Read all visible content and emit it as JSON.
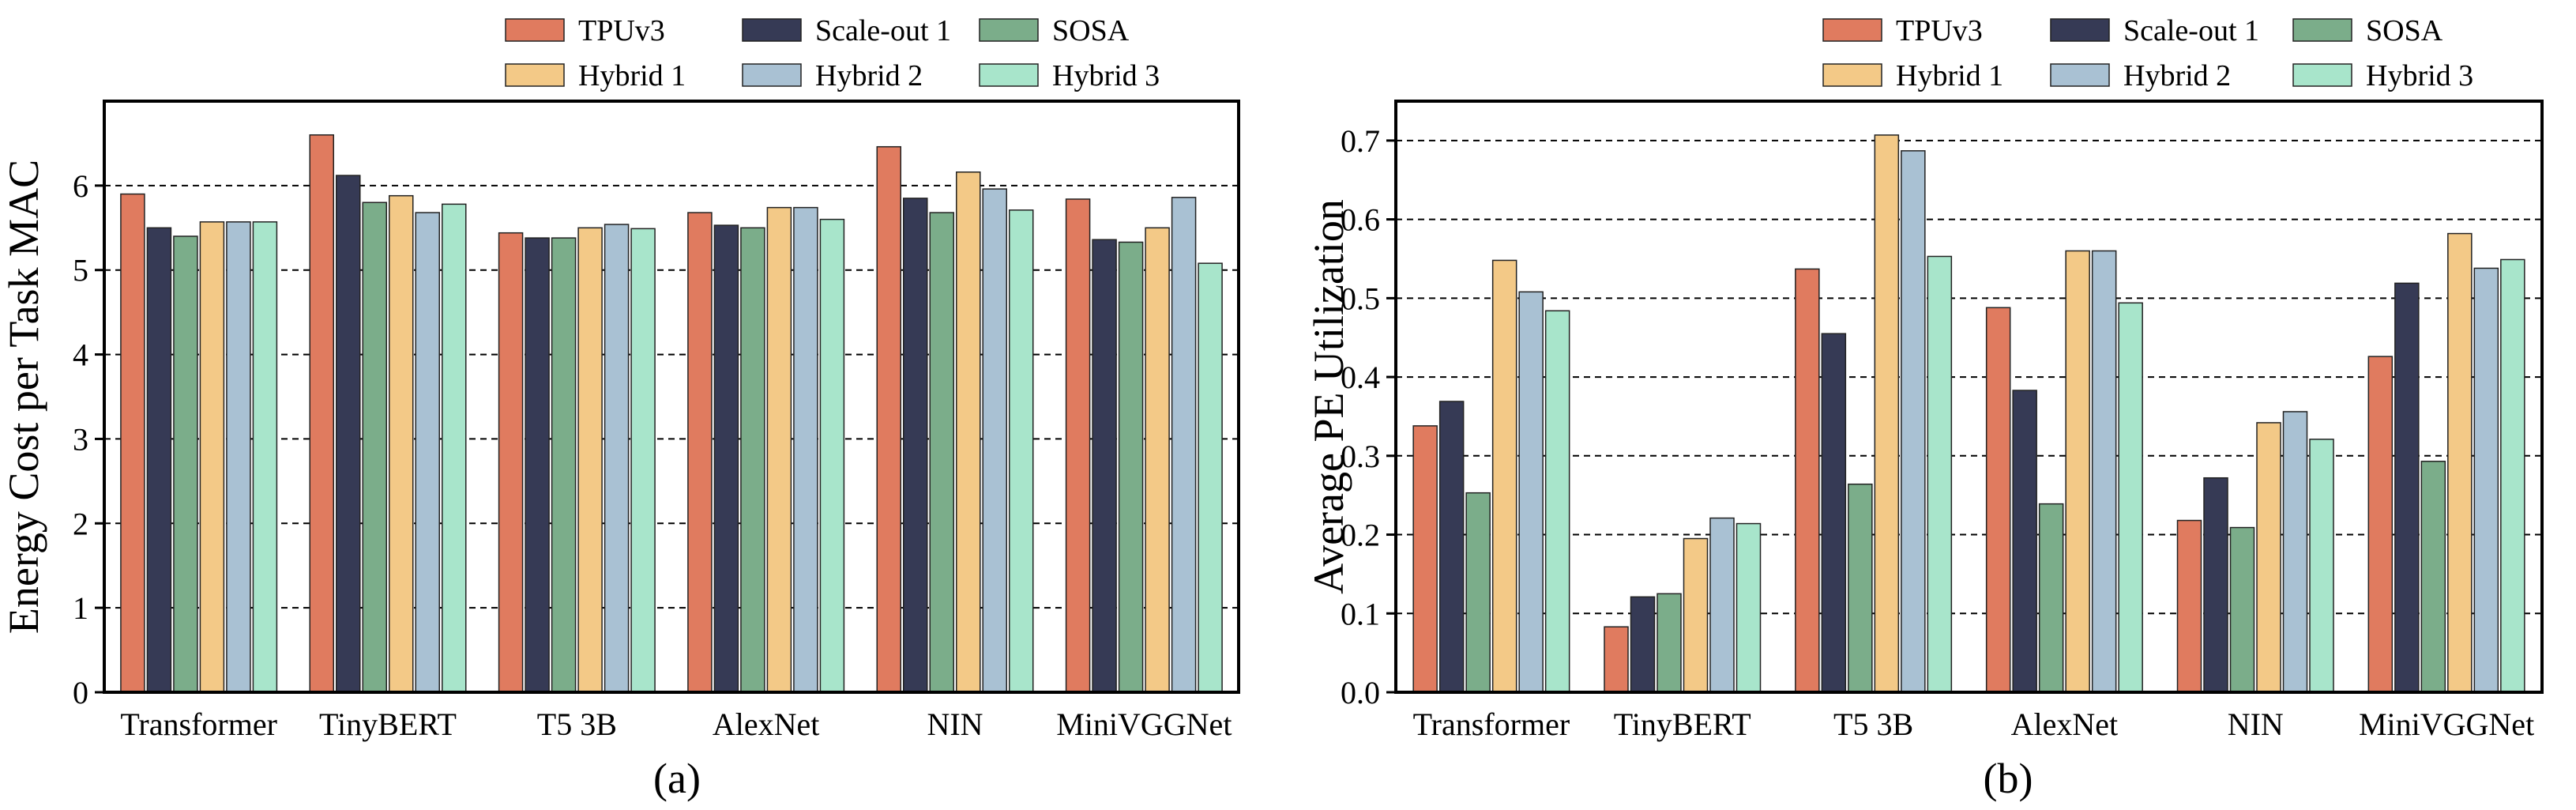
{
  "chart_data": [
    {
      "type": "bar",
      "caption": "(a)",
      "ylabel": "Energy Cost per Task MAC",
      "xlabel": "",
      "ylim": [
        0,
        7
      ],
      "yticks": [
        "0",
        "1",
        "2",
        "3",
        "4",
        "5",
        "6"
      ],
      "ytick_values": [
        0,
        1,
        2,
        3,
        4,
        5,
        6
      ],
      "grid": "dashed horizontal",
      "legend_position": "top",
      "categories": [
        "Transformer",
        "TinyBERT",
        "T5 3B",
        "AlexNet",
        "NIN",
        "MiniVGGNet"
      ],
      "series": [
        {
          "name": "TPUv3",
          "color": "#e07b5f",
          "values": [
            5.9,
            6.6,
            5.44,
            5.68,
            6.46,
            5.84
          ]
        },
        {
          "name": "Scale-out 1",
          "color": "#363a55",
          "values": [
            5.5,
            6.12,
            5.38,
            5.53,
            5.85,
            5.36
          ]
        },
        {
          "name": "SOSA",
          "color": "#7bad8a",
          "values": [
            5.4,
            5.8,
            5.38,
            5.5,
            5.68,
            5.33
          ]
        },
        {
          "name": "Hybrid 1",
          "color": "#f3c987",
          "values": [
            5.57,
            5.88,
            5.5,
            5.74,
            6.16,
            5.5
          ]
        },
        {
          "name": "Hybrid 2",
          "color": "#a9c1d3",
          "values": [
            5.57,
            5.68,
            5.54,
            5.74,
            5.96,
            5.86
          ]
        },
        {
          "name": "Hybrid 3",
          "color": "#a8e5cb",
          "values": [
            5.57,
            5.78,
            5.49,
            5.6,
            5.71,
            5.08
          ]
        }
      ]
    },
    {
      "type": "bar",
      "caption": "(b)",
      "ylabel": "Average PE Utilization",
      "xlabel": "",
      "ylim": [
        0,
        0.75
      ],
      "yticks": [
        "0.0",
        "0.1",
        "0.2",
        "0.3",
        "0.4",
        "0.5",
        "0.6",
        "0.7"
      ],
      "ytick_values": [
        0,
        0.1,
        0.2,
        0.3,
        0.4,
        0.5,
        0.6,
        0.7
      ],
      "grid": "dashed horizontal",
      "legend_position": "top",
      "categories": [
        "Transformer",
        "TinyBERT",
        "T5 3B",
        "AlexNet",
        "NIN",
        "MiniVGGNet"
      ],
      "series": [
        {
          "name": "TPUv3",
          "color": "#e07b5f",
          "values": [
            0.338,
            0.083,
            0.537,
            0.488,
            0.218,
            0.426
          ]
        },
        {
          "name": "Scale-out 1",
          "color": "#363a55",
          "values": [
            0.369,
            0.121,
            0.455,
            0.383,
            0.272,
            0.519
          ]
        },
        {
          "name": "SOSA",
          "color": "#7bad8a",
          "values": [
            0.253,
            0.125,
            0.264,
            0.239,
            0.209,
            0.293
          ]
        },
        {
          "name": "Hybrid 1",
          "color": "#f3c987",
          "values": [
            0.548,
            0.195,
            0.707,
            0.56,
            0.342,
            0.582
          ]
        },
        {
          "name": "Hybrid 2",
          "color": "#a9c1d3",
          "values": [
            0.508,
            0.221,
            0.687,
            0.56,
            0.356,
            0.538
          ]
        },
        {
          "name": "Hybrid 3",
          "color": "#a8e5cb",
          "values": [
            0.484,
            0.214,
            0.553,
            0.494,
            0.321,
            0.549
          ]
        }
      ]
    }
  ]
}
